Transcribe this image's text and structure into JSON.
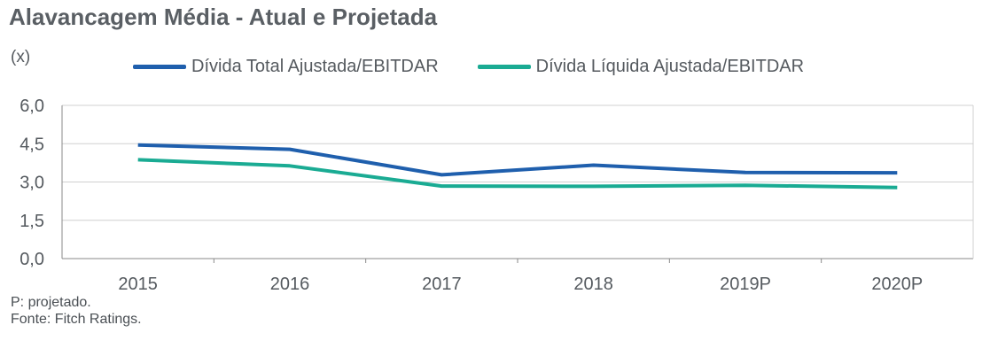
{
  "chart_data": {
    "type": "line",
    "title": "Alavancagem Média - Atual e Projetada",
    "unit_label": "(x)",
    "categories": [
      "2015",
      "2016",
      "2017",
      "2018",
      "2019P",
      "2020P"
    ],
    "ylim": [
      0,
      6
    ],
    "yticks": [
      "6,0",
      "4,5",
      "3,0",
      "1,5",
      "0,0"
    ],
    "ytick_values": [
      6,
      4.5,
      3,
      1.5,
      0
    ],
    "grid": true,
    "legend_position": "top",
    "series": [
      {
        "name": "Dívida Total Ajustada/EBITDAR",
        "color": "#1f5fad",
        "values": [
          4.45,
          4.28,
          3.28,
          3.66,
          3.37,
          3.36
        ]
      },
      {
        "name": "Dívida Líquida Ajustada/EBITDAR",
        "color": "#1aab93",
        "values": [
          3.87,
          3.63,
          2.84,
          2.83,
          2.87,
          2.78
        ]
      }
    ]
  },
  "notes": [
    "P: projetado.",
    "Fonte: Fitch Ratings."
  ]
}
